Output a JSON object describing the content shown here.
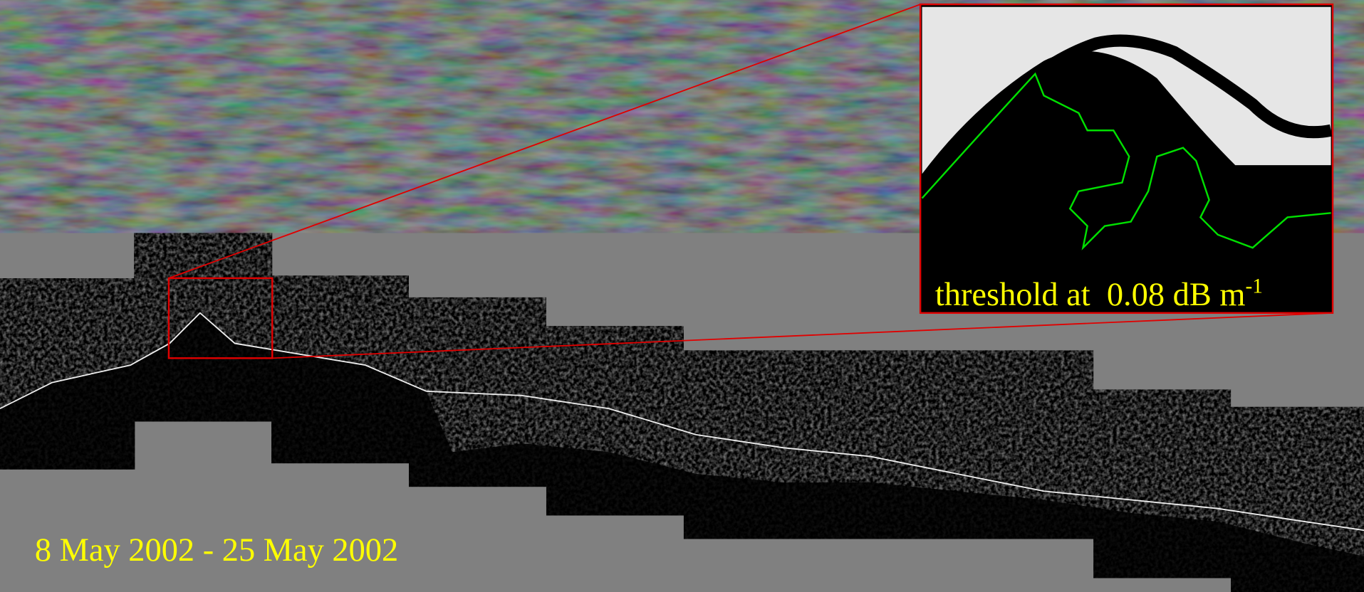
{
  "inset": {
    "label": "threshold at  0.08 dB m",
    "superscript": "-1"
  },
  "date_range": "8 May 2002 - 25 May 2002"
}
